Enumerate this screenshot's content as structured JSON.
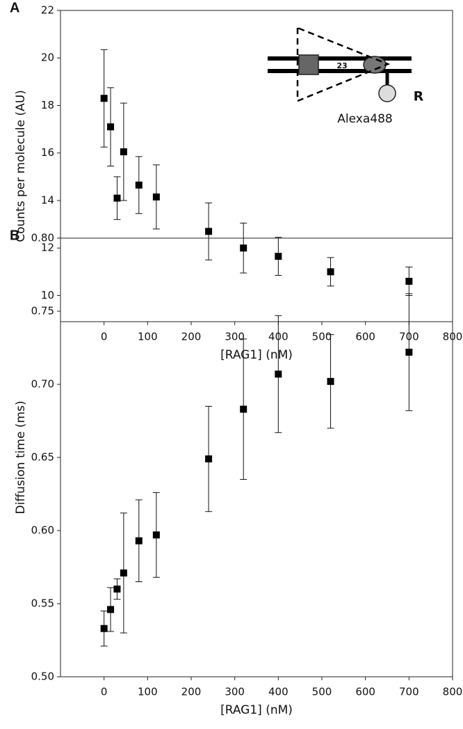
{
  "chart_data": [
    {
      "type": "scatter",
      "title": "A",
      "xlabel": "[RAG1] (nM)",
      "ylabel": "Counts per molecule (AU)",
      "x": [
        0,
        15,
        30,
        45,
        80,
        120,
        240,
        320,
        400,
        520,
        700
      ],
      "values": [
        18.3,
        17.1,
        14.1,
        16.05,
        14.65,
        14.15,
        12.7,
        12.0,
        11.65,
        11.0,
        10.6
      ],
      "errors": [
        2.05,
        1.65,
        0.9,
        2.05,
        1.2,
        1.35,
        1.2,
        1.05,
        0.8,
        0.6,
        0.6
      ],
      "color": "#000000",
      "xlim": [
        -100,
        800
      ],
      "xticks": [
        0,
        100,
        200,
        300,
        400,
        500,
        600,
        700,
        800
      ],
      "ylim": [
        8.9,
        22
      ],
      "yticks": [
        10,
        12,
        14,
        16,
        18,
        20,
        22
      ],
      "annotations": [
        "23",
        "Alexa488",
        "R"
      ]
    },
    {
      "type": "scatter",
      "title": "B",
      "xlabel": "[RAG1] (nM)",
      "ylabel": "Diffusion time (ms)",
      "x": [
        0,
        15,
        30,
        45,
        80,
        120,
        240,
        320,
        400,
        520,
        700
      ],
      "values": [
        0.533,
        0.546,
        0.56,
        0.571,
        0.593,
        0.597,
        0.649,
        0.683,
        0.707,
        0.702,
        0.722
      ],
      "errors": [
        0.012,
        0.015,
        0.007,
        0.041,
        0.028,
        0.029,
        0.036,
        0.048,
        0.04,
        0.032,
        0.04
      ],
      "color": "#000000",
      "xlim": [
        -100,
        800
      ],
      "xticks": [
        0,
        100,
        200,
        300,
        400,
        500,
        600,
        700,
        800
      ],
      "ylim": [
        0.5,
        0.8
      ],
      "yticks": [
        {
          "value": 0.5,
          "label": "0.50"
        },
        0.55,
        {
          "value": 0.6,
          "label": "0.60"
        },
        0.65,
        {
          "value": 0.7,
          "label": "0.70"
        },
        0.75,
        {
          "value": 0.8,
          "label": "0.80"
        }
      ]
    }
  ]
}
